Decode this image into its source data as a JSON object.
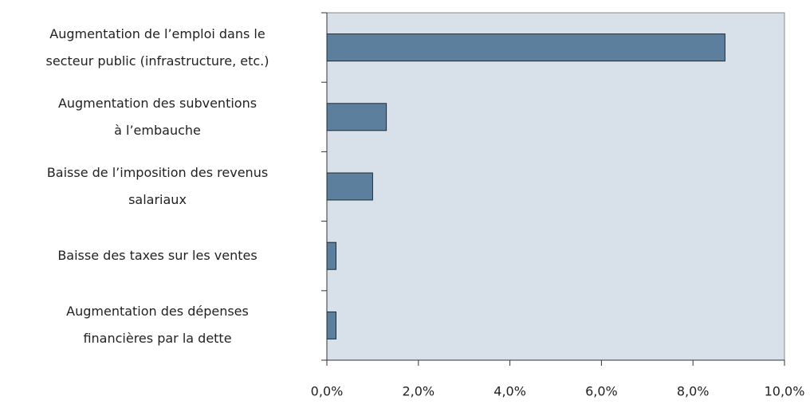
{
  "chart_data": {
    "type": "bar",
    "orientation": "horizontal",
    "categories": [
      "Augmentation de l’emploi dans le\nsecteur public (infrastructure, etc.)",
      "Augmentation des subventions\nà l’embauche",
      "Baisse de l’imposition des revenus\nsalariaux",
      "Baisse des taxes sur les ventes",
      "Augmentation des dépenses\nfinancières par la dette"
    ],
    "values": [
      8.7,
      1.3,
      1.0,
      0.2,
      0.2
    ],
    "color": "#5b7f9c",
    "xlim": [
      0,
      10
    ],
    "xticks": [
      {
        "value": 0,
        "label": "0,0%"
      },
      {
        "value": 2,
        "label": "2,0%"
      },
      {
        "value": 4,
        "label": "4,0%"
      },
      {
        "value": 6,
        "label": "6,0%"
      },
      {
        "value": 8,
        "label": "8,0%"
      },
      {
        "value": 10,
        "label": "10,0%"
      }
    ],
    "grid": false
  }
}
